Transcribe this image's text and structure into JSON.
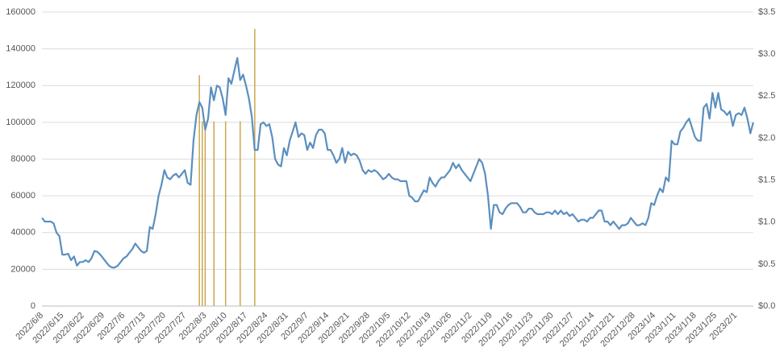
{
  "chart_data": {
    "type": "line",
    "categories": [
      "2022/6/8",
      null,
      null,
      null,
      null,
      null,
      null,
      "2022/6/15",
      null,
      null,
      null,
      null,
      null,
      null,
      "2022/6/22",
      null,
      null,
      null,
      null,
      null,
      null,
      "2022/6/29",
      null,
      null,
      null,
      null,
      null,
      null,
      "2022/7/6",
      null,
      null,
      null,
      null,
      null,
      null,
      "2022/7/13",
      null,
      null,
      null,
      null,
      null,
      null,
      "2022/7/20",
      null,
      null,
      null,
      null,
      null,
      null,
      "2022/7/27",
      null,
      null,
      null,
      null,
      null,
      null,
      "2022/8/3",
      null,
      null,
      null,
      null,
      null,
      null,
      "2022/8/10",
      null,
      null,
      null,
      null,
      null,
      null,
      "2022/8/17",
      null,
      null,
      null,
      null,
      null,
      null,
      "2022/8/24",
      null,
      null,
      null,
      null,
      null,
      null,
      "2022/8/31",
      null,
      null,
      null,
      null,
      null,
      null,
      "2022/9/7",
      null,
      null,
      null,
      null,
      null,
      null,
      "2022/9/14",
      null,
      null,
      null,
      null,
      null,
      null,
      "2022/9/21",
      null,
      null,
      null,
      null,
      null,
      null,
      "2022/9/28",
      null,
      null,
      null,
      null,
      null,
      null,
      "2022/10/5",
      null,
      null,
      null,
      null,
      null,
      null,
      "2022/10/12",
      null,
      null,
      null,
      null,
      null,
      null,
      "2022/10/19",
      null,
      null,
      null,
      null,
      null,
      null,
      "2022/10/26",
      null,
      null,
      null,
      null,
      null,
      null,
      "2022/11/2",
      null,
      null,
      null,
      null,
      null,
      null,
      "2022/11/9",
      null,
      null,
      null,
      null,
      null,
      null,
      "2022/11/16",
      null,
      null,
      null,
      null,
      null,
      null,
      "2022/11/23",
      null,
      null,
      null,
      null,
      null,
      null,
      "2022/11/30",
      null,
      null,
      null,
      null,
      null,
      null,
      "2022/12/7",
      null,
      null,
      null,
      null,
      null,
      null,
      "2022/12/14",
      null,
      null,
      null,
      null,
      null,
      null,
      "2022/12/21",
      null,
      null,
      null,
      null,
      null,
      null,
      "2022/12/28",
      null,
      null,
      null,
      null,
      null,
      null,
      "2023/1/4",
      null,
      null,
      null,
      null,
      null,
      null,
      "2023/1/11",
      null,
      null,
      null,
      null,
      null,
      null,
      "2023/1/18",
      null,
      null,
      null,
      null,
      null,
      null,
      "2023/1/25",
      null,
      null,
      null,
      null,
      null,
      null,
      "2023/2/1",
      null,
      null,
      null,
      null,
      null,
      null
    ],
    "series": [
      {
        "type": "line",
        "color": "#5b8fbf",
        "values": [
          48000,
          46000,
          46000,
          46000,
          45000,
          40000,
          38000,
          28000,
          28000,
          28500,
          25000,
          27000,
          22000,
          24000,
          24000,
          25000,
          24000,
          26000,
          30000,
          29500,
          28000,
          26000,
          24000,
          22000,
          21000,
          21000,
          22000,
          24000,
          26000,
          27000,
          29000,
          31000,
          34000,
          32000,
          30000,
          29000,
          30000,
          43000,
          42000,
          50000,
          60000,
          66000,
          74000,
          70000,
          69000,
          71000,
          72000,
          70000,
          72000,
          74000,
          67000,
          66000,
          90000,
          104000,
          111000,
          108000,
          96000,
          102000,
          119000,
          112000,
          120000,
          119000,
          113000,
          104000,
          124000,
          121000,
          128000,
          135000,
          123000,
          126000,
          120000,
          113000,
          103000,
          85000,
          85000,
          99000,
          100000,
          98000,
          99000,
          92000,
          80000,
          77000,
          76000,
          86000,
          82000,
          90000,
          95000,
          100000,
          92000,
          94000,
          93000,
          85000,
          89000,
          86000,
          93000,
          96000,
          96000,
          94000,
          85000,
          85000,
          82000,
          78000,
          80000,
          86000,
          78000,
          84000,
          82000,
          83000,
          82000,
          79000,
          74000,
          72000,
          74000,
          73000,
          74000,
          73000,
          71000,
          69000,
          70000,
          72000,
          70000,
          69000,
          69000,
          68000,
          68000,
          68000,
          60000,
          59000,
          57000,
          57000,
          60000,
          63000,
          62000,
          70000,
          67000,
          65000,
          68000,
          70000,
          70000,
          72000,
          74000,
          78000,
          75000,
          77000,
          74000,
          72000,
          70000,
          68000,
          72000,
          76000,
          80000,
          78000,
          72000,
          60000,
          42000,
          55000,
          55000,
          51000,
          50000,
          53000,
          55000,
          56000,
          56000,
          56000,
          54000,
          51000,
          51000,
          53000,
          53000,
          51000,
          50000,
          50000,
          50000,
          51000,
          51000,
          50000,
          52000,
          50000,
          52000,
          50000,
          51000,
          49000,
          50000,
          48000,
          46000,
          47000,
          47000,
          46000,
          48000,
          48000,
          50000,
          52000,
          52000,
          46000,
          46000,
          44000,
          46000,
          44000,
          42000,
          44000,
          44000,
          45000,
          48000,
          46000,
          44000,
          44000,
          45000,
          44000,
          48000,
          56000,
          55000,
          60000,
          64000,
          62000,
          70000,
          68000,
          90000,
          88000,
          88000,
          95000,
          97000,
          100000,
          102000,
          97000,
          92000,
          90000,
          90000,
          108000,
          110000,
          102000,
          116000,
          108000,
          116000,
          107000,
          106000,
          104000,
          106000,
          98000,
          104000,
          105000,
          104000,
          108000,
          102000,
          94000,
          100000
        ]
      },
      {
        "type": "bar",
        "axis": "y2",
        "color": "#c9a84f",
        "values": [
          null,
          null,
          null,
          null,
          null,
          null,
          null,
          null,
          null,
          null,
          null,
          null,
          null,
          null,
          null,
          null,
          null,
          null,
          null,
          null,
          null,
          null,
          null,
          null,
          null,
          null,
          null,
          null,
          null,
          null,
          null,
          null,
          null,
          null,
          null,
          null,
          null,
          null,
          null,
          null,
          null,
          null,
          null,
          null,
          null,
          null,
          null,
          null,
          null,
          null,
          null,
          null,
          null,
          null,
          2.75,
          2.2,
          2.2,
          null,
          null,
          2.2,
          null,
          null,
          null,
          2.2,
          null,
          null,
          null,
          null,
          2.2,
          null,
          null,
          null,
          null,
          3.3,
          null,
          null,
          null,
          null,
          null,
          null,
          null,
          null,
          null,
          null,
          null,
          null,
          null,
          null,
          null,
          null,
          null,
          null,
          null,
          null,
          null,
          null,
          null,
          null,
          null,
          null,
          null,
          null,
          null,
          null,
          null,
          null,
          null,
          null,
          null,
          null,
          null,
          null,
          null,
          null,
          null,
          null,
          null,
          null,
          null,
          null,
          null,
          null,
          null,
          null,
          null,
          null,
          null,
          null,
          null,
          null,
          null,
          null,
          null,
          null,
          null,
          null,
          null,
          null,
          null,
          null,
          null,
          null,
          null,
          null,
          null,
          null,
          null,
          null,
          null,
          null,
          null,
          null,
          null,
          null,
          null,
          null,
          null,
          null,
          null,
          null,
          null,
          null,
          null,
          null,
          null,
          null,
          null,
          null,
          null,
          null,
          null,
          null,
          null,
          null,
          null,
          null,
          null,
          null,
          null,
          null,
          null,
          null,
          null,
          null,
          null,
          null,
          null,
          null,
          null,
          null,
          null,
          null,
          null,
          null,
          null,
          null,
          null,
          null,
          null,
          null,
          null,
          null,
          null,
          null,
          null,
          null,
          null,
          null,
          null,
          null,
          null,
          null,
          null,
          null,
          null,
          null,
          null,
          null,
          null,
          null,
          null,
          null,
          null,
          null,
          null,
          null,
          null,
          null,
          null,
          null,
          null,
          null,
          null,
          null,
          null,
          null,
          null,
          null,
          null,
          null,
          null,
          null,
          null,
          null,
          null
        ]
      }
    ],
    "ylim": [
      0,
      160000
    ],
    "yticks": [
      0,
      20000,
      40000,
      60000,
      80000,
      100000,
      120000,
      140000,
      160000
    ],
    "y2lim": [
      0,
      3.5
    ],
    "y2ticks": [
      {
        "value": 0,
        "label": "$0.0"
      },
      {
        "value": 0.5,
        "label": "$0.5"
      },
      {
        "value": 1,
        "label": "$1.0"
      },
      {
        "value": 1.5,
        "label": "$1.5"
      },
      {
        "value": 2,
        "label": "$2.0"
      },
      {
        "value": 2.5,
        "label": "$2.5"
      },
      {
        "value": 3,
        "label": "$3.0"
      },
      {
        "value": 3.5,
        "label": "$3.5"
      }
    ],
    "grid": true
  }
}
